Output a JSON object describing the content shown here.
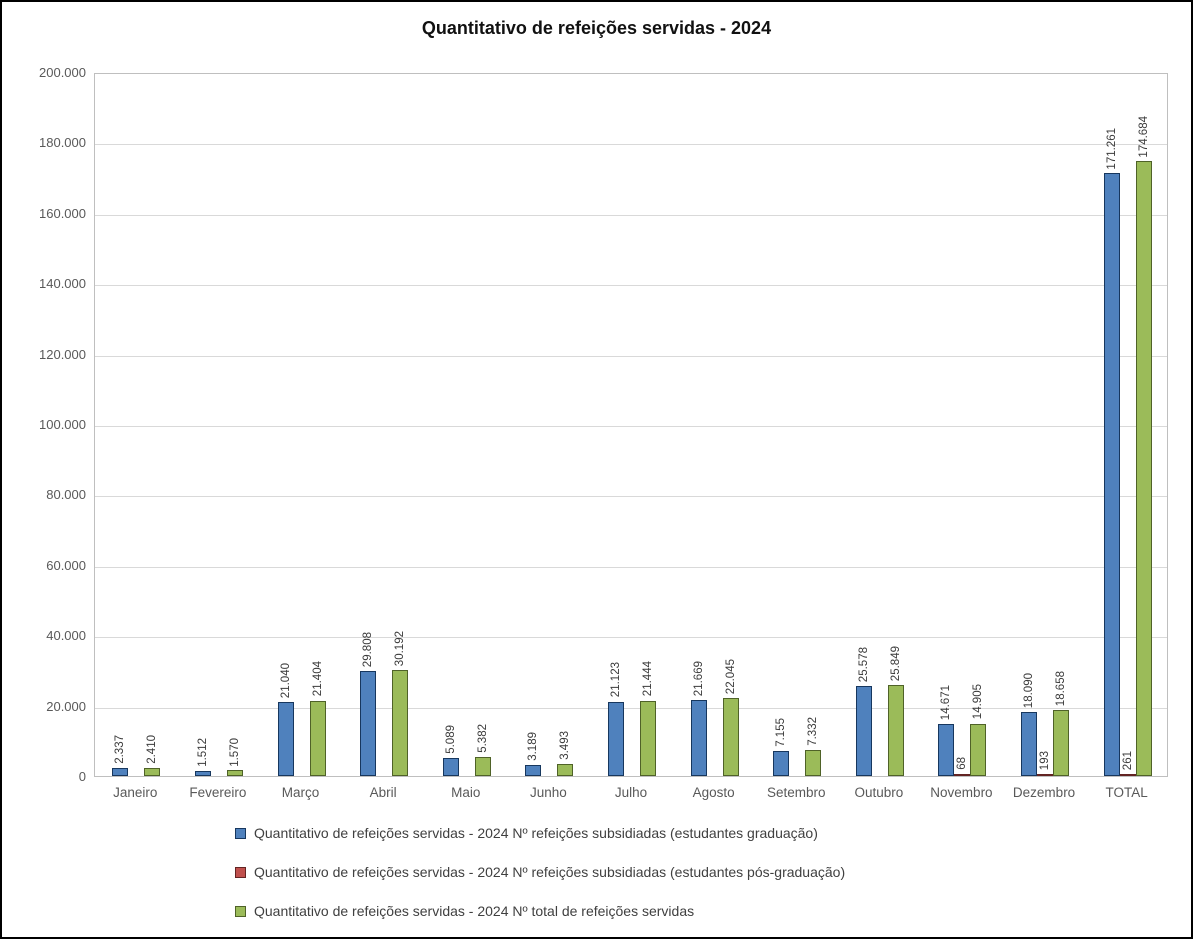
{
  "chart_data": {
    "type": "bar",
    "title": "Quantitativo de refeições servidas - 2024",
    "xlabel": "",
    "ylabel": "",
    "categories": [
      "Janeiro",
      "Fevereiro",
      "Março",
      "Abril",
      "Maio",
      "Junho",
      "Julho",
      "Agosto",
      "Setembro",
      "Outubro",
      "Novembro",
      "Dezembro",
      "TOTAL"
    ],
    "series": [
      {
        "key": "graduacao",
        "name": "Quantitativo de refeições servidas - 2024 Nº refeições subsidiadas (estudantes graduação)",
        "color": "#4F81BD",
        "border_color": "#17375E",
        "values": [
          2337,
          1512,
          21040,
          29808,
          5089,
          3189,
          21123,
          21669,
          7155,
          25578,
          14671,
          18090,
          171261
        ],
        "labels": [
          "2.337",
          "1.512",
          "21.040",
          "29.808",
          "5.089",
          "3.189",
          "21.123",
          "21.669",
          "7.155",
          "25.578",
          "14.671",
          "18.090",
          "171.261"
        ]
      },
      {
        "key": "pos-graduacao",
        "name": "Quantitativo de refeições servidas - 2024 Nº refeições subsidiadas (estudantes pós-graduação)",
        "color": "#C0504D",
        "border_color": "#632423",
        "values": [
          null,
          null,
          null,
          null,
          null,
          null,
          null,
          null,
          null,
          null,
          68,
          193,
          261
        ],
        "labels": [
          "",
          "",
          "",
          "",
          "",
          "",
          "",
          "",
          "",
          "",
          "68",
          "193",
          "261"
        ]
      },
      {
        "key": "total",
        "name": "Quantitativo de refeições servidas - 2024 Nº total de refeições servidas",
        "color": "#9BBB59",
        "border_color": "#4F6228",
        "values": [
          2410,
          1570,
          21404,
          30192,
          5382,
          3493,
          21444,
          22045,
          7332,
          25849,
          14905,
          18658,
          174684
        ],
        "labels": [
          "2.410",
          "1.570",
          "21.404",
          "30.192",
          "5.382",
          "3.493",
          "21.444",
          "22.045",
          "7.332",
          "25.849",
          "14.905",
          "18.658",
          "174.684"
        ]
      }
    ],
    "ylim": [
      0,
      200000
    ],
    "ytick_step": 20000,
    "ytick_labels": [
      "0",
      "20.000",
      "40.000",
      "60.000",
      "80.000",
      "100.000",
      "120.000",
      "140.000",
      "160.000",
      "180.000",
      "200.000"
    ],
    "grid": true,
    "legend_position": "bottom"
  }
}
